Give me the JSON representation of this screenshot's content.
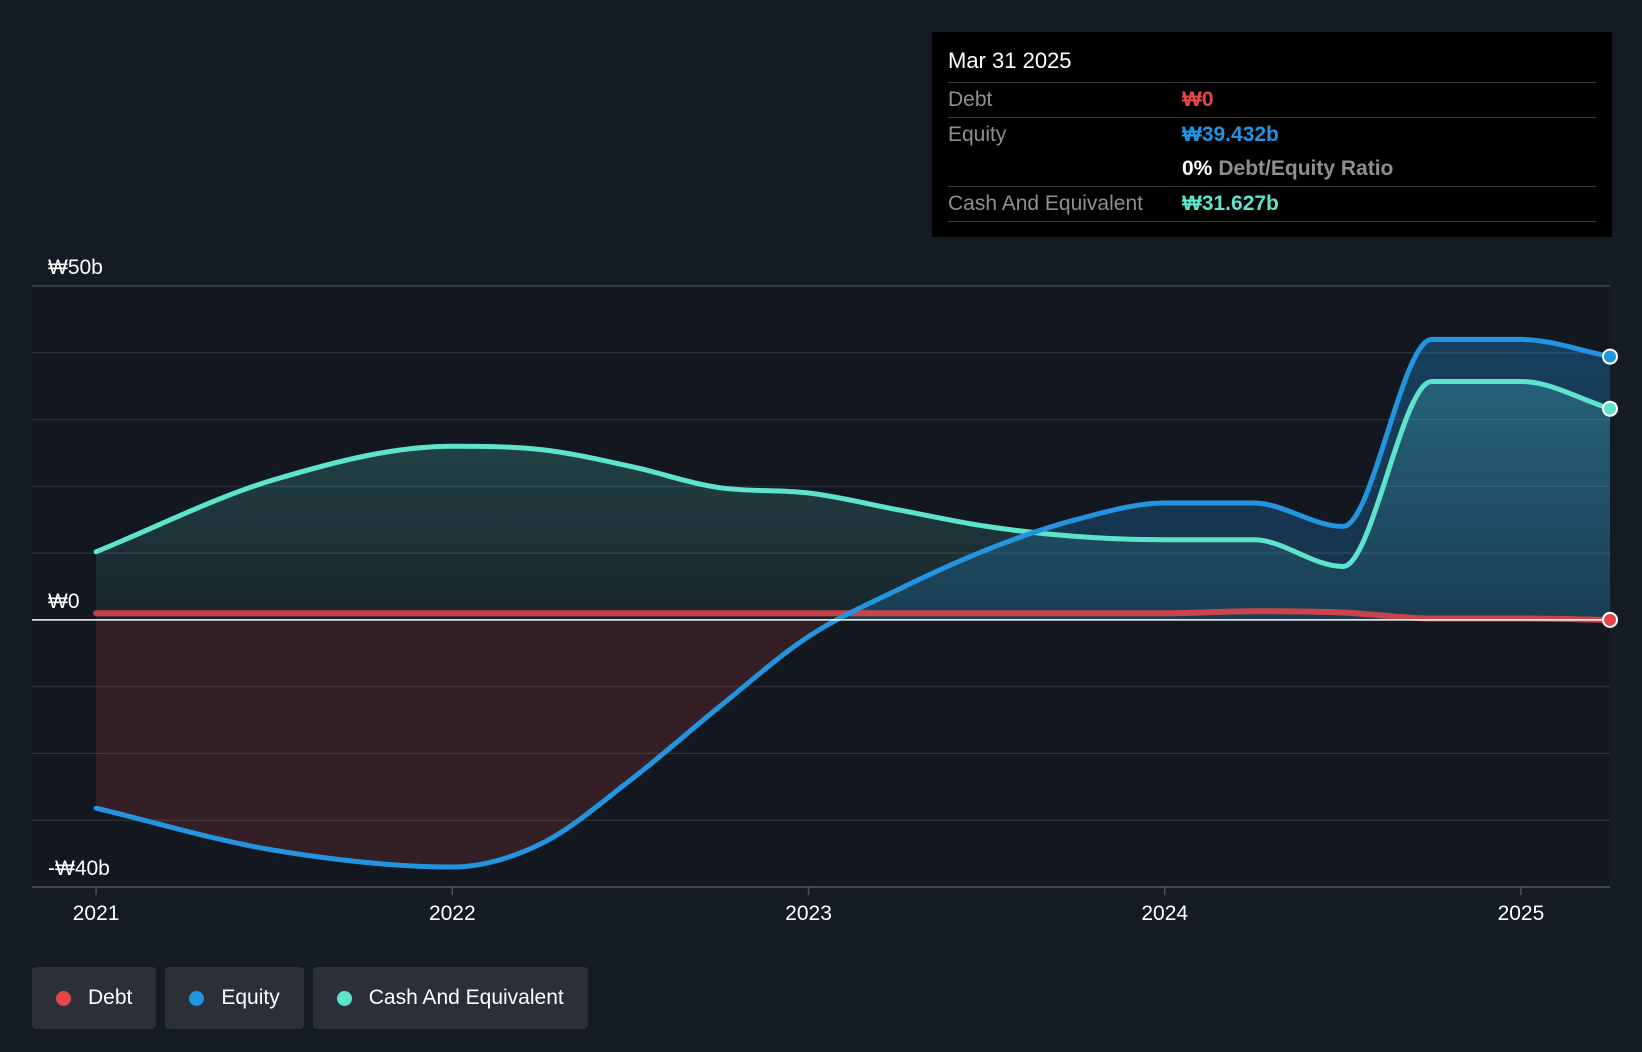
{
  "chart_data": {
    "type": "area",
    "title": "",
    "xlabel": "",
    "ylabel": "",
    "ylim": [
      -40,
      50
    ],
    "y_ticks": [
      {
        "value": 50,
        "label": "₩50b"
      },
      {
        "value": 0,
        "label": "₩0"
      },
      {
        "value": -40,
        "label": "-₩40b"
      }
    ],
    "x_ticks": [
      {
        "value": 2021,
        "label": "2021"
      },
      {
        "value": 2022,
        "label": "2022"
      },
      {
        "value": 2023,
        "label": "2023"
      },
      {
        "value": 2024,
        "label": "2024"
      },
      {
        "value": 2025,
        "label": "2025"
      }
    ],
    "xlim": [
      2020.82,
      2025.25
    ],
    "grid": true,
    "series": [
      {
        "name": "Debt",
        "color": "#e64646",
        "points": [
          [
            2021.0,
            1.0
          ],
          [
            2022.0,
            1.0
          ],
          [
            2023.0,
            1.0
          ],
          [
            2024.0,
            1.0
          ],
          [
            2024.25,
            1.3
          ],
          [
            2024.5,
            1.1
          ],
          [
            2024.75,
            0.2
          ],
          [
            2025.0,
            0.2
          ],
          [
            2025.25,
            0.0
          ]
        ]
      },
      {
        "name": "Equity",
        "color": "#2394df",
        "points": [
          [
            2021.0,
            -28.2
          ],
          [
            2021.5,
            -34.5
          ],
          [
            2022.0,
            -37.0
          ],
          [
            2022.25,
            -33.5
          ],
          [
            2022.5,
            -24.0
          ],
          [
            2022.75,
            -13.0
          ],
          [
            2023.0,
            -2.5
          ],
          [
            2023.25,
            4.5
          ],
          [
            2023.5,
            10.5
          ],
          [
            2023.75,
            15.0
          ],
          [
            2024.0,
            17.5
          ],
          [
            2024.25,
            17.5
          ],
          [
            2024.5,
            14.0
          ],
          [
            2024.75,
            42.0
          ],
          [
            2025.0,
            42.0
          ],
          [
            2025.25,
            39.432
          ]
        ]
      },
      {
        "name": "Cash And Equivalent",
        "color": "#5ee3cd",
        "points": [
          [
            2021.0,
            10.2
          ],
          [
            2021.5,
            21.0
          ],
          [
            2022.0,
            26.0
          ],
          [
            2022.25,
            25.5
          ],
          [
            2022.5,
            23.0
          ],
          [
            2022.75,
            19.8
          ],
          [
            2023.0,
            19.0
          ],
          [
            2023.25,
            16.5
          ],
          [
            2023.5,
            14.0
          ],
          [
            2023.75,
            12.5
          ],
          [
            2024.0,
            12.0
          ],
          [
            2024.25,
            12.0
          ],
          [
            2024.5,
            8.0
          ],
          [
            2024.75,
            35.7
          ],
          [
            2025.0,
            35.7
          ],
          [
            2025.25,
            31.627
          ]
        ]
      }
    ]
  },
  "tooltip": {
    "date": "Mar 31 2025",
    "debt_label": "Debt",
    "debt_value": "₩0",
    "equity_label": "Equity",
    "equity_value": "₩39.432b",
    "ratio_value": "0%",
    "ratio_label": "Debt/Equity Ratio",
    "cash_label": "Cash And Equivalent",
    "cash_value": "₩31.627b"
  },
  "legend": {
    "items": [
      {
        "label": "Debt",
        "color": "#e64646"
      },
      {
        "label": "Equity",
        "color": "#2394df"
      },
      {
        "label": "Cash And Equivalent",
        "color": "#5ee3cd"
      }
    ]
  }
}
